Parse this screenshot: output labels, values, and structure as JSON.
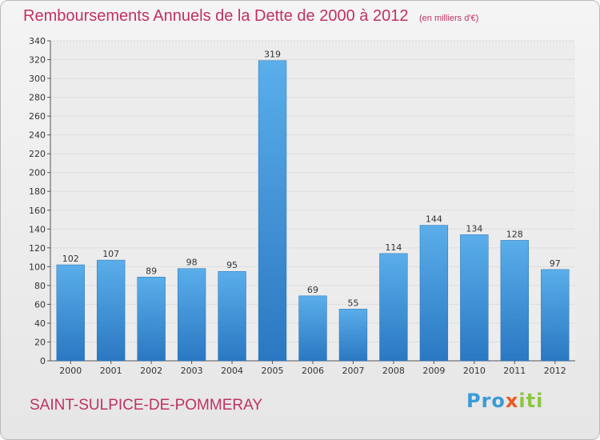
{
  "chart_data": {
    "type": "bar",
    "title": "Remboursements Annuels de la Dette de 2000 à 2012",
    "subtitle": "(en milliers d'€)",
    "categories": [
      "2000",
      "2001",
      "2002",
      "2003",
      "2004",
      "2005",
      "2006",
      "2007",
      "2008",
      "2009",
      "2010",
      "2011",
      "2012"
    ],
    "values": [
      102,
      107,
      89,
      98,
      95,
      319,
      69,
      55,
      114,
      144,
      134,
      128,
      97
    ],
    "ylim": [
      0,
      340
    ],
    "yticks": [
      0,
      20,
      40,
      60,
      80,
      100,
      120,
      140,
      160,
      180,
      200,
      220,
      240,
      260,
      280,
      300,
      320,
      340
    ],
    "grid": true,
    "bar_color": "#3b8fd6"
  },
  "footer": {
    "place": "SAINT-SULPICE-DE-POMMERAY"
  },
  "logo": {
    "parts": [
      "Pro",
      "x",
      "iti"
    ]
  }
}
